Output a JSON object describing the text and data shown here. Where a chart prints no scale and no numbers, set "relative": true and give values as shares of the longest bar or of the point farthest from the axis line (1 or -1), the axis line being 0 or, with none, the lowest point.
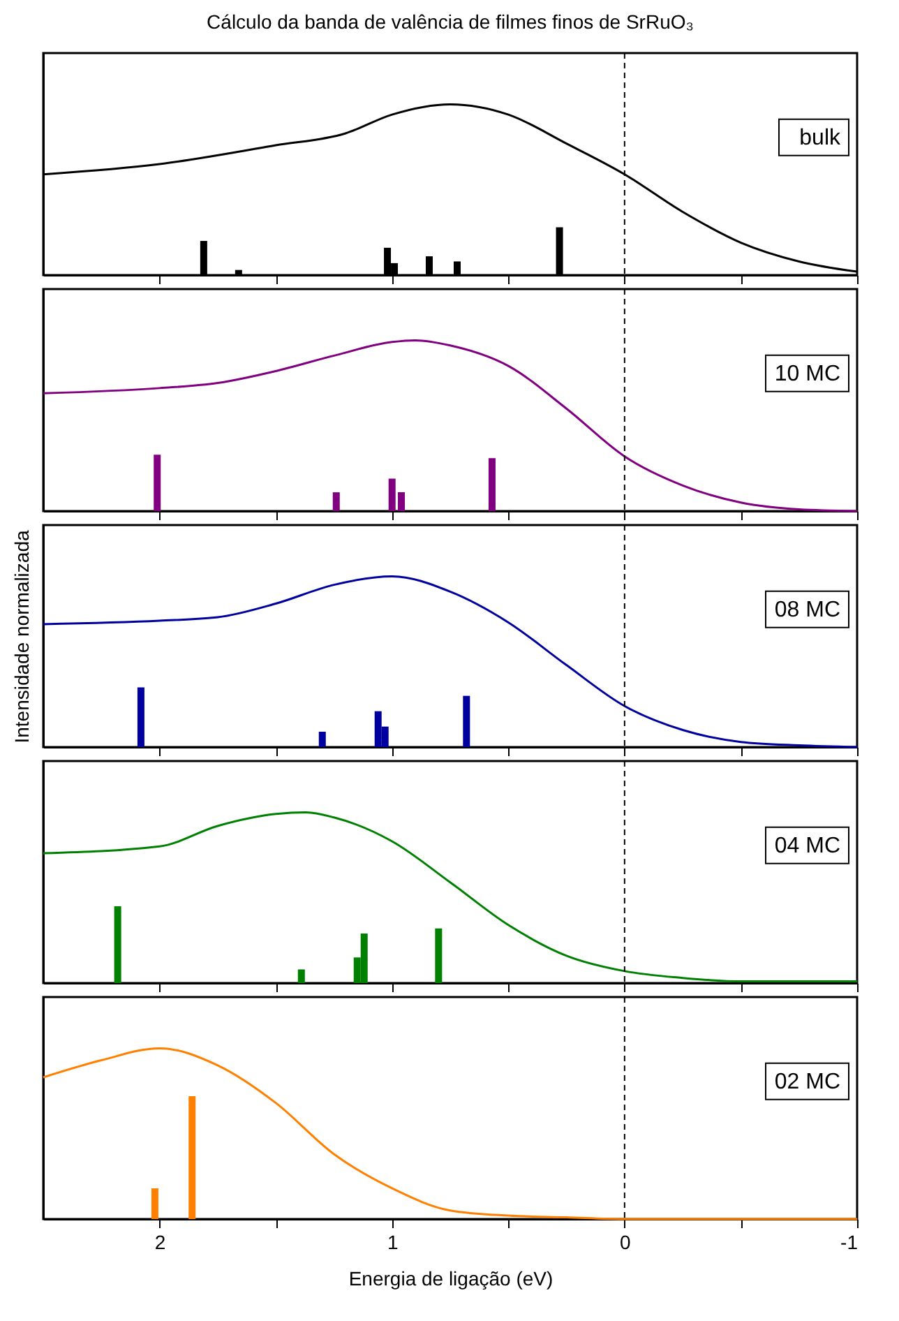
{
  "chart_data": [
    {
      "type": "bar",
      "title": "Cálculo da banda de valência de filmes finos de SrRuO₃",
      "relative": true,
      "xlim": [
        2.5,
        -1
      ],
      "xticks": [
        2,
        {
          "value": 1.5,
          "label": null
        },
        1,
        {
          "value": 0.5,
          "label": null
        },
        0,
        {
          "value": -0.5,
          "label": null
        },
        -1
      ],
      "tick_labels": false,
      "annotations": [
        "bulk"
      ],
      "ref_lines": [
        {
          "axis": "x",
          "value": 0,
          "color": "#000000",
          "line_style": "dashed"
        }
      ],
      "series": [
        {
          "type": "line",
          "color": "#000000",
          "x": [
            2.5,
            2.0,
            1.5,
            1.2,
            1.0,
            0.75,
            0.5,
            0.25,
            0,
            -0.25,
            -0.5,
            -0.75,
            -1
          ],
          "values": [
            0.59,
            0.65,
            0.76,
            0.83,
            0.94,
            1.0,
            0.94,
            0.77,
            0.59,
            0.37,
            0.19,
            0.08,
            0.02
          ]
        },
        {
          "color": "#000000",
          "x": [
            1.81,
            1.66,
            1.02,
            0.99,
            0.84,
            0.72,
            0.28
          ],
          "values": [
            0.2,
            0.03,
            0.16,
            0.07,
            0.11,
            0.08,
            0.28
          ]
        }
      ]
    },
    {
      "type": "bar",
      "relative": true,
      "xlim": [
        2.5,
        -1
      ],
      "xticks": [
        2,
        {
          "value": 1.5,
          "label": null
        },
        1,
        {
          "value": 0.5,
          "label": null
        },
        0,
        {
          "value": -0.5,
          "label": null
        },
        -1
      ],
      "tick_labels": false,
      "annotations": [
        "10 MC"
      ],
      "ref_lines": [
        {
          "axis": "x",
          "value": 0,
          "color": "#000000",
          "line_style": "dashed"
        }
      ],
      "series": [
        {
          "type": "line",
          "color": "#800080",
          "x": [
            2.5,
            2.0,
            1.75,
            1.5,
            1.25,
            1.0,
            0.9,
            0.75,
            0.5,
            0.25,
            0,
            -0.25,
            -0.5,
            -0.75,
            -1
          ],
          "values": [
            0.69,
            0.72,
            0.75,
            0.82,
            0.91,
            0.99,
            1.0,
            0.97,
            0.85,
            0.6,
            0.32,
            0.15,
            0.05,
            0.01,
            0
          ]
        },
        {
          "color": "#800080",
          "x": [
            2.01,
            1.24,
            1.0,
            0.96,
            0.57
          ],
          "values": [
            0.33,
            0.11,
            0.19,
            0.11,
            0.31
          ]
        }
      ]
    },
    {
      "type": "bar",
      "ylabel": "Intensidade normalizada",
      "relative": true,
      "xlim": [
        2.5,
        -1
      ],
      "xticks": [
        2,
        {
          "value": 1.5,
          "label": null
        },
        1,
        {
          "value": 0.5,
          "label": null
        },
        0,
        {
          "value": -0.5,
          "label": null
        },
        -1
      ],
      "tick_labels": false,
      "annotations": [
        "08 MC"
      ],
      "ref_lines": [
        {
          "axis": "x",
          "value": 0,
          "color": "#000000",
          "line_style": "dashed"
        }
      ],
      "series": [
        {
          "type": "line",
          "color": "#0000a0",
          "x": [
            2.5,
            2.0,
            1.75,
            1.5,
            1.25,
            1.0,
            0.75,
            0.5,
            0.25,
            0,
            -0.25,
            -0.5,
            -0.75,
            -1
          ],
          "values": [
            0.72,
            0.74,
            0.76,
            0.84,
            0.95,
            1.0,
            0.91,
            0.73,
            0.48,
            0.24,
            0.1,
            0.03,
            0.01,
            0
          ]
        },
        {
          "color": "#0000a0",
          "x": [
            2.08,
            1.3,
            1.06,
            1.03,
            0.68
          ],
          "values": [
            0.35,
            0.09,
            0.21,
            0.12,
            0.3
          ]
        }
      ]
    },
    {
      "type": "bar",
      "relative": true,
      "xlim": [
        2.5,
        -1
      ],
      "xticks": [
        2,
        {
          "value": 1.5,
          "label": null
        },
        1,
        {
          "value": 0.5,
          "label": null
        },
        0,
        {
          "value": -0.5,
          "label": null
        },
        -1
      ],
      "tick_labels": false,
      "annotations": [
        "04 MC"
      ],
      "ref_lines": [
        {
          "axis": "x",
          "value": 0,
          "color": "#000000",
          "line_style": "dashed"
        }
      ],
      "series": [
        {
          "type": "line",
          "color": "#008000",
          "x": [
            2.5,
            2.0,
            1.75,
            1.5,
            1.37,
            1.25,
            1.0,
            0.75,
            0.5,
            0.25,
            0,
            -0.25,
            -0.5,
            -1
          ],
          "values": [
            0.76,
            0.8,
            0.92,
            0.99,
            1.0,
            0.97,
            0.83,
            0.59,
            0.34,
            0.16,
            0.07,
            0.03,
            0.01,
            0.01
          ]
        },
        {
          "color": "#008000",
          "x": [
            2.18,
            1.39,
            1.15,
            1.12,
            0.8
          ],
          "values": [
            0.45,
            0.08,
            0.15,
            0.29,
            0.32
          ]
        }
      ]
    },
    {
      "type": "bar",
      "xlabel": "Energia de ligação (eV)",
      "relative": true,
      "xlim": [
        2.5,
        -1
      ],
      "xticks": [
        2,
        {
          "value": 1.5,
          "label": null
        },
        1,
        {
          "value": 0.5,
          "label": null
        },
        0,
        {
          "value": -0.5,
          "label": null
        },
        -1
      ],
      "tick_labels": "x",
      "annotations": [
        "02 MC"
      ],
      "ref_lines": [
        {
          "axis": "x",
          "value": 0,
          "color": "#000000",
          "line_style": "dashed"
        }
      ],
      "series": [
        {
          "type": "line",
          "color": "#ff8000",
          "x": [
            2.5,
            2.25,
            2.0,
            1.75,
            1.5,
            1.25,
            1.0,
            0.75,
            0.5,
            0.25,
            0,
            -1
          ],
          "values": [
            0.83,
            0.93,
            1.0,
            0.9,
            0.68,
            0.38,
            0.18,
            0.05,
            0.02,
            0.01,
            0,
            0
          ]
        },
        {
          "color": "#ff8000",
          "x": [
            2.02,
            1.86
          ],
          "values": [
            0.18,
            0.72
          ]
        }
      ]
    }
  ]
}
